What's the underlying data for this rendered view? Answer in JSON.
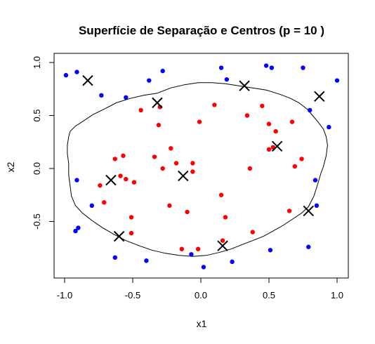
{
  "chart_data": {
    "type": "scatter",
    "title": "Superfície de Separação e Centros (p = 10 )",
    "xlabel": "x1",
    "ylabel": "x2",
    "xlim": [
      -1.0,
      1.0
    ],
    "ylim": [
      -0.92,
      1.0
    ],
    "grid": false,
    "legend": "none",
    "x_ticks": [
      {
        "value": -1.0,
        "label": "-1.0"
      },
      {
        "value": -0.5,
        "label": "-0.5"
      },
      {
        "value": 0.0,
        "label": "0.0"
      },
      {
        "value": 0.5,
        "label": "0.5"
      },
      {
        "value": 1.0,
        "label": "1.0"
      }
    ],
    "y_ticks": [
      {
        "value": -0.5,
        "label": "-0.5"
      },
      {
        "value": 0.0,
        "label": "0.0"
      },
      {
        "value": 0.5,
        "label": "0.5"
      },
      {
        "value": 1.0,
        "label": "1.0"
      }
    ],
    "series": [
      {
        "color": "#0000ff",
        "marker": "dot",
        "points": [
          [
            -0.99,
            0.88
          ],
          [
            -0.91,
            0.91
          ],
          [
            -0.73,
            0.69
          ],
          [
            -0.55,
            0.67
          ],
          [
            -0.38,
            0.83
          ],
          [
            -0.28,
            0.92
          ],
          [
            0.15,
            0.95
          ],
          [
            0.19,
            0.84
          ],
          [
            0.48,
            0.97
          ],
          [
            0.52,
            0.95
          ],
          [
            0.75,
            0.95
          ],
          [
            1.0,
            0.83
          ],
          [
            0.8,
            0.55
          ],
          [
            0.94,
            0.39
          ],
          [
            -0.91,
            -0.11
          ],
          [
            -0.8,
            -0.35
          ],
          [
            -0.9,
            -0.56
          ],
          [
            -0.92,
            -0.59
          ],
          [
            -0.63,
            -0.84
          ],
          [
            -0.4,
            -0.87
          ],
          [
            -0.07,
            -0.81
          ],
          [
            0.02,
            -0.93
          ],
          [
            0.23,
            -0.88
          ],
          [
            0.51,
            -0.77
          ],
          [
            0.79,
            -0.74
          ],
          [
            0.85,
            -0.35
          ],
          [
            0.84,
            -0.11
          ]
        ]
      },
      {
        "color": "#ff0000",
        "marker": "dot",
        "points": [
          [
            -0.44,
            0.55
          ],
          [
            -0.3,
            0.58
          ],
          [
            -0.31,
            0.41
          ],
          [
            0.1,
            0.6
          ],
          [
            -0.01,
            0.44
          ],
          [
            0.34,
            0.5
          ],
          [
            0.45,
            0.59
          ],
          [
            0.5,
            0.42
          ],
          [
            0.55,
            0.35
          ],
          [
            0.67,
            0.44
          ],
          [
            0.5,
            0.18
          ],
          [
            0.53,
            0.2
          ],
          [
            0.74,
            0.09
          ],
          [
            0.69,
            0.02
          ],
          [
            0.36,
            0.0
          ],
          [
            -0.22,
            0.19
          ],
          [
            -0.34,
            0.11
          ],
          [
            -0.18,
            0.05
          ],
          [
            -0.28,
            0.0
          ],
          [
            -0.63,
            0.09
          ],
          [
            -0.57,
            0.12
          ],
          [
            -0.06,
            0.05
          ],
          [
            -0.06,
            -0.03
          ],
          [
            -0.59,
            -0.07
          ],
          [
            -0.55,
            -0.1
          ],
          [
            -0.49,
            -0.13
          ],
          [
            -0.74,
            -0.16
          ],
          [
            -0.71,
            -0.32
          ],
          [
            -0.51,
            -0.46
          ],
          [
            -0.51,
            -0.61
          ],
          [
            -0.23,
            -0.35
          ],
          [
            -0.1,
            -0.41
          ],
          [
            0.15,
            -0.25
          ],
          [
            0.18,
            -0.46
          ],
          [
            0.38,
            -0.6
          ],
          [
            0.16,
            -0.68
          ],
          [
            0.65,
            -0.4
          ],
          [
            -0.14,
            -0.76
          ],
          [
            -0.02,
            -0.76
          ]
        ]
      },
      {
        "color": "#000000",
        "marker": "cross",
        "name": "",
        "points": [
          [
            -0.83,
            0.83
          ],
          [
            -0.32,
            0.62
          ],
          [
            0.32,
            0.78
          ],
          [
            0.87,
            0.68
          ],
          [
            0.56,
            0.21
          ],
          [
            -0.66,
            -0.11
          ],
          [
            -0.13,
            -0.07
          ],
          [
            -0.6,
            -0.64
          ],
          [
            0.16,
            -0.73
          ],
          [
            0.79,
            -0.4
          ]
        ]
      }
    ],
    "boundary": {
      "color": "#000000",
      "points": [
        [
          -0.96,
          0.35
        ],
        [
          -0.92,
          0.4
        ],
        [
          -0.86,
          0.45
        ],
        [
          -0.79,
          0.51
        ],
        [
          -0.71,
          0.56
        ],
        [
          -0.62,
          0.62
        ],
        [
          -0.52,
          0.66
        ],
        [
          -0.42,
          0.69
        ],
        [
          -0.32,
          0.71
        ],
        [
          -0.22,
          0.76
        ],
        [
          -0.12,
          0.79
        ],
        [
          -0.02,
          0.81
        ],
        [
          0.08,
          0.81
        ],
        [
          0.18,
          0.8
        ],
        [
          0.28,
          0.78
        ],
        [
          0.38,
          0.76
        ],
        [
          0.48,
          0.74
        ],
        [
          0.58,
          0.7
        ],
        [
          0.66,
          0.66
        ],
        [
          0.72,
          0.62
        ],
        [
          0.78,
          0.56
        ],
        [
          0.82,
          0.5
        ],
        [
          0.86,
          0.44
        ],
        [
          0.9,
          0.37
        ],
        [
          0.92,
          0.3
        ],
        [
          0.93,
          0.22
        ],
        [
          0.92,
          0.12
        ],
        [
          0.9,
          0.02
        ],
        [
          0.88,
          -0.05
        ],
        [
          0.86,
          -0.14
        ],
        [
          0.83,
          -0.26
        ],
        [
          0.79,
          -0.36
        ],
        [
          0.74,
          -0.42
        ],
        [
          0.67,
          -0.48
        ],
        [
          0.6,
          -0.54
        ],
        [
          0.53,
          -0.59
        ],
        [
          0.46,
          -0.64
        ],
        [
          0.38,
          -0.68
        ],
        [
          0.3,
          -0.72
        ],
        [
          0.22,
          -0.76
        ],
        [
          0.14,
          -0.79
        ],
        [
          0.04,
          -0.82
        ],
        [
          -0.06,
          -0.83
        ],
        [
          -0.16,
          -0.82
        ],
        [
          -0.26,
          -0.8
        ],
        [
          -0.36,
          -0.77
        ],
        [
          -0.45,
          -0.73
        ],
        [
          -0.55,
          -0.68
        ],
        [
          -0.64,
          -0.62
        ],
        [
          -0.72,
          -0.56
        ],
        [
          -0.8,
          -0.49
        ],
        [
          -0.87,
          -0.42
        ],
        [
          -0.92,
          -0.35
        ],
        [
          -0.95,
          -0.26
        ],
        [
          -0.96,
          -0.16
        ],
        [
          -0.97,
          -0.06
        ],
        [
          -0.97,
          0.05
        ],
        [
          -0.98,
          0.14
        ],
        [
          -0.98,
          0.22
        ],
        [
          -0.97,
          0.3
        ],
        [
          -0.96,
          0.35
        ]
      ]
    }
  }
}
